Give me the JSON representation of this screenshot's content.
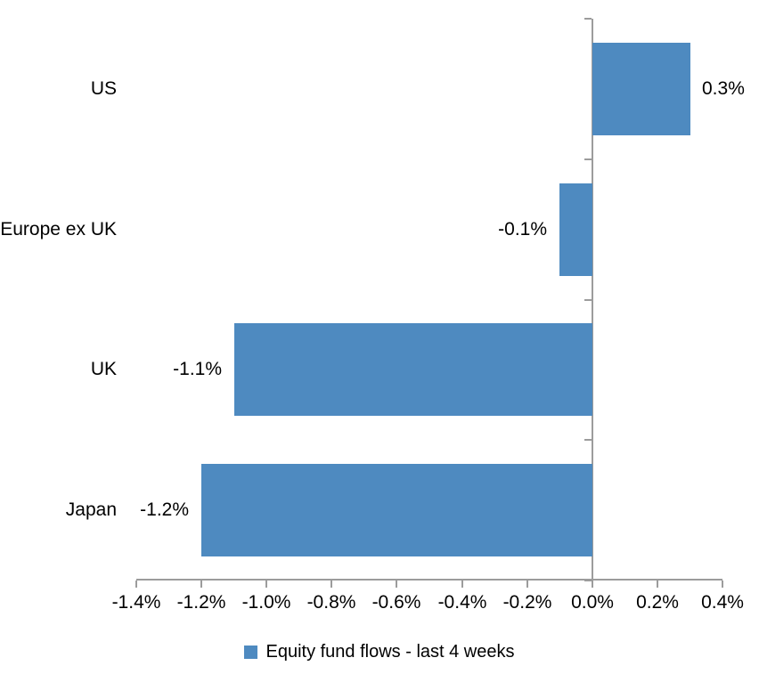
{
  "chart_data": {
    "type": "bar",
    "orientation": "horizontal",
    "title": "",
    "xlabel": "",
    "ylabel": "",
    "categories": [
      "US",
      "Europe ex UK",
      "UK",
      "Japan"
    ],
    "values": [
      0.3,
      -0.1,
      -1.1,
      -1.2
    ],
    "data_labels": [
      "0.3%",
      "-0.1%",
      "-1.1%",
      "-1.2%"
    ],
    "series_name": "Equity fund flows - last 4 weeks",
    "xlim": [
      -1.4,
      0.4
    ],
    "x_tick_step": 0.2,
    "x_ticks": [
      -1.4,
      -1.2,
      -1.0,
      -0.8,
      -0.6,
      -0.4,
      -0.2,
      0.0,
      0.2,
      0.4
    ],
    "x_tick_labels": [
      "-1.4%",
      "-1.2%",
      "-1.0%",
      "-0.8%",
      "-0.6%",
      "-0.4%",
      "-0.2%",
      "0.0%",
      "0.2%",
      "0.4%"
    ],
    "grid": false,
    "legend_position": "bottom",
    "colors": {
      "bar": "#4E8AC0",
      "axis": "#9C9C9C",
      "text": "#000000",
      "background": "#FFFFFF"
    }
  },
  "legend": {
    "label": "Equity fund flows - last 4 weeks"
  }
}
